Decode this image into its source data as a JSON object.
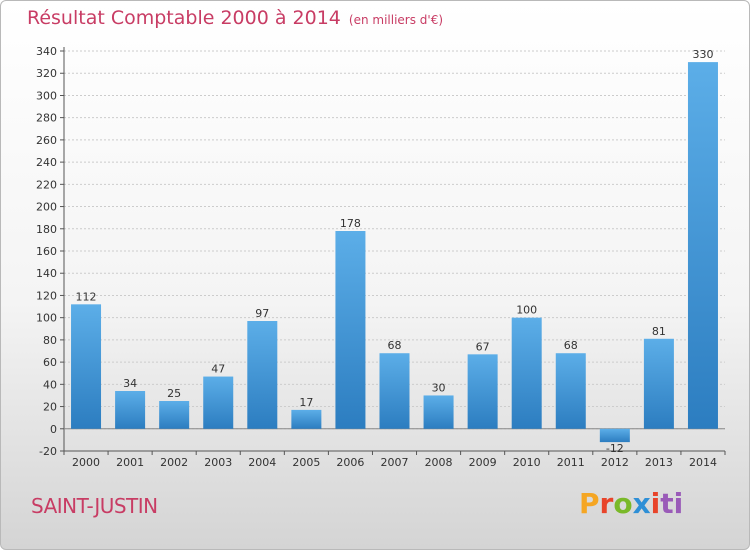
{
  "header": {
    "title": "Résultat Comptable 2000 à 2014",
    "subtitle": "(en milliers d'€)"
  },
  "footer": {
    "town": "SAINT-JUSTIN",
    "logo_parts": [
      "P",
      "r",
      "o",
      "x",
      "i",
      "ti"
    ]
  },
  "colors": {
    "bar": "#4a9ee0",
    "title": "#c83c64"
  },
  "chart_data": {
    "type": "bar",
    "categories": [
      "2000",
      "2001",
      "2002",
      "2003",
      "2004",
      "2005",
      "2006",
      "2007",
      "2008",
      "2009",
      "2010",
      "2011",
      "2012",
      "2013",
      "2014"
    ],
    "values": [
      112,
      34,
      25,
      47,
      97,
      17,
      178,
      68,
      30,
      67,
      100,
      68,
      -12,
      81,
      330
    ],
    "data_labels": [
      "112",
      "34",
      "25",
      "47",
      "97",
      "17",
      "178",
      "68",
      "30",
      "67",
      "100",
      "68",
      "-12",
      "81",
      "330"
    ],
    "ylim": [
      -20,
      340
    ],
    "yticks": [
      -20,
      0,
      20,
      40,
      60,
      80,
      100,
      120,
      140,
      160,
      180,
      200,
      220,
      240,
      260,
      280,
      300,
      320,
      340
    ],
    "grid": true
  }
}
